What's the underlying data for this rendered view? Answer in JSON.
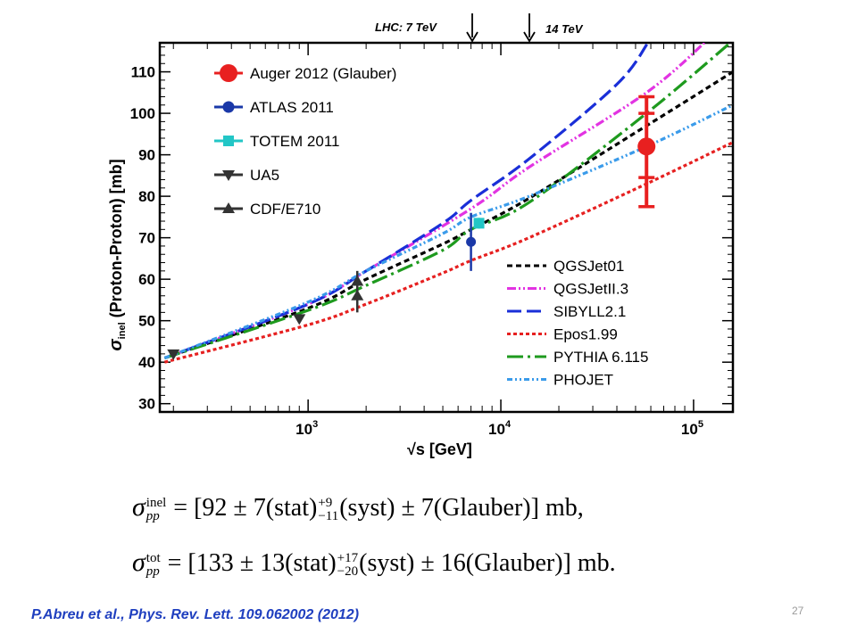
{
  "lhc": {
    "label_7": "LHC:  7 TeV",
    "label_14": "14 TeV"
  },
  "chart_data": {
    "type": "line",
    "xlabel": "√s   [GeV]",
    "ylabel": "σinel (Proton-Proton)   [mb]",
    "xscale": "log",
    "xlim": [
      170,
      160000
    ],
    "ylim": [
      28,
      117
    ],
    "yticks": [
      30,
      40,
      50,
      60,
      70,
      80,
      90,
      100,
      110
    ],
    "xticks": [
      {
        "value": 1000,
        "base": "10",
        "exp": "3"
      },
      {
        "value": 10000,
        "base": "10",
        "exp": "4"
      },
      {
        "value": 100000,
        "base": "10",
        "exp": "5"
      }
    ],
    "lhc_markers_gev": [
      7000,
      14000
    ],
    "series": [
      {
        "name": "QGSJet01",
        "color": "#000000",
        "dash": "6,4",
        "x": [
          180,
          1000,
          2000,
          5000,
          7000,
          14000,
          57000,
          160000
        ],
        "y": [
          41,
          53,
          60,
          68.5,
          72,
          79.5,
          97,
          110
        ]
      },
      {
        "name": "QGSJetII.3",
        "color": "#e233e2",
        "dash": "10,3,2,3,2,3",
        "x": [
          180,
          1000,
          2000,
          7000,
          14000,
          57000,
          120000
        ],
        "y": [
          41,
          54,
          62,
          77,
          87,
          105,
          118
        ]
      },
      {
        "name": "SIBYLL2.1",
        "color": "#1a2fd8",
        "dash": "16,6",
        "x": [
          180,
          1000,
          2000,
          5000,
          7000,
          14000,
          40000,
          58000
        ],
        "y": [
          41,
          54,
          62,
          73.5,
          79,
          89,
          107,
          117
        ]
      },
      {
        "name": "Epos1.99",
        "color": "#e62020",
        "dash": "4,3",
        "x": [
          180,
          1000,
          2000,
          5000,
          7000,
          14000,
          57000,
          160000
        ],
        "y": [
          40,
          49,
          54,
          61.5,
          64.5,
          70,
          83,
          93
        ]
      },
      {
        "name": "PYTHIA 6.115",
        "color": "#1e9a1e",
        "dash": "18,5,3,5",
        "x": [
          180,
          1000,
          2000,
          5000,
          7000,
          14000,
          57000,
          155000
        ],
        "y": [
          41,
          52.5,
          58.5,
          67,
          72,
          78.5,
          100,
          117
        ]
      },
      {
        "name": "PHOJET",
        "color": "#3a9bea",
        "dash": "6,3,2,3,2,3",
        "x": [
          180,
          1000,
          2000,
          5000,
          7000,
          14000,
          57000,
          160000
        ],
        "y": [
          41,
          54.5,
          62,
          71,
          75,
          80,
          92,
          102
        ]
      }
    ],
    "points": [
      {
        "name": "Auger 2012 (Glauber)",
        "color": "#e82020",
        "marker": "circle-large",
        "x": 57000,
        "y": 92,
        "yerr_lo": 14.5,
        "yerr_hi": 12,
        "sys_lo": 7.5,
        "sys_hi": 8
      },
      {
        "name": "ATLAS 2011",
        "color": "#1a38a8",
        "marker": "circle",
        "x": 7000,
        "y": 69,
        "yerr_lo": 7,
        "yerr_hi": 7
      },
      {
        "name": "TOTEM 2011",
        "color": "#22c6c6",
        "marker": "square",
        "x": 7700,
        "y": 73.5,
        "yerr_lo": 1.3,
        "yerr_hi": 1.3
      },
      {
        "name": "UA5",
        "color": "#333333",
        "marker": "triangle-down",
        "x": [
          200,
          900
        ],
        "y": [
          42,
          50.5
        ],
        "yerr_lo": [
          1,
          0.9
        ],
        "yerr_hi": [
          1,
          0.9
        ]
      },
      {
        "name": "CDF/E710",
        "color": "#333333",
        "marker": "triangle-up",
        "x": [
          1800,
          1800
        ],
        "y": [
          56,
          59.5
        ],
        "yerr_lo": [
          4,
          2.5
        ],
        "yerr_hi": [
          4,
          2.5
        ]
      }
    ]
  },
  "formulas": {
    "inel": {
      "sym": "σ",
      "sup": "inel",
      "sub": "pp",
      "eq": " = [92 ± 7(stat)",
      "sys_hi": "+9",
      "sys_lo": "−11",
      "rest": "(syst) ± 7(Glauber)] mb,"
    },
    "tot": {
      "sym": "σ",
      "sup": "tot",
      "sub": "pp",
      "eq": " = [133 ± 13(stat)",
      "sys_hi": "+17",
      "sys_lo": "−20",
      "rest": "(syst) ± 16(Glauber)] mb."
    }
  },
  "citation": "P.Abreu et al., Phys. Rev. Lett. 109.062002 (2012)",
  "page_number": "27"
}
